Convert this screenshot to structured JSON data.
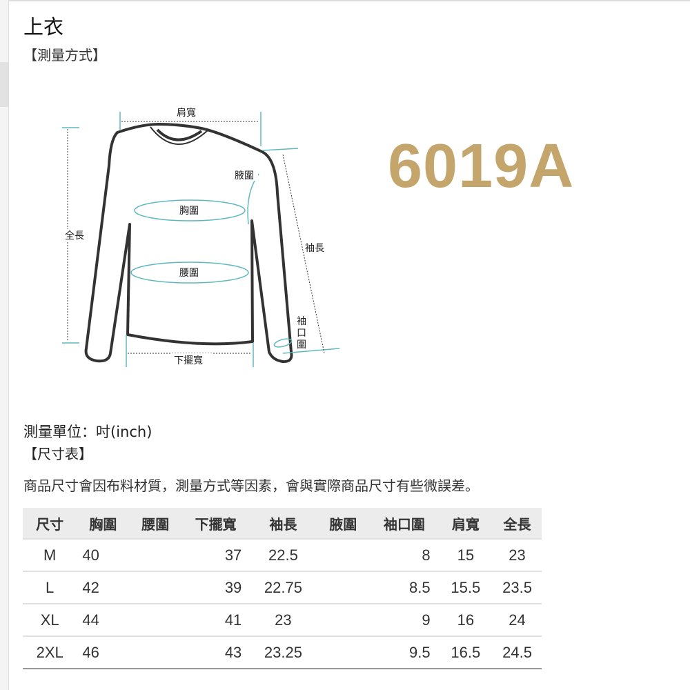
{
  "title": "上衣",
  "method_heading": "【測量方式】",
  "product_code": "6019A",
  "diagram_labels": {
    "shoulder": "肩寬",
    "armpit": "腋圍",
    "chest": "胸圍",
    "waist": "腰圍",
    "length": "全長",
    "sleeve": "袖長",
    "cuff": "袖口圍",
    "hem": "下擺寬"
  },
  "unit": "測量單位：吋(inch)",
  "size_chart_heading": "【尺寸表】",
  "note": "商品尺寸會因布料材質，測量方式等因素，會與實際商品尺寸有些微誤差。",
  "table": {
    "headers": [
      "尺寸",
      "胸圍",
      "腰圍",
      "下擺寬",
      "袖長",
      "腋圍",
      "袖口圍",
      "肩寬",
      "全長"
    ],
    "rows": [
      [
        "M",
        "40",
        "",
        "37",
        "22.5",
        "",
        "8",
        "15",
        "23"
      ],
      [
        "L",
        "42",
        "",
        "39",
        "22.75",
        "",
        "8.5",
        "15.5",
        "23.5"
      ],
      [
        "XL",
        "44",
        "",
        "41",
        "23",
        "",
        "9",
        "16",
        "24"
      ],
      [
        "2XL",
        "46",
        "",
        "43",
        "23.25",
        "",
        "9.5",
        "16.5",
        "24.5"
      ]
    ]
  },
  "colors": {
    "accent": "#c4a66c",
    "measure_line": "#5fb8c0"
  }
}
